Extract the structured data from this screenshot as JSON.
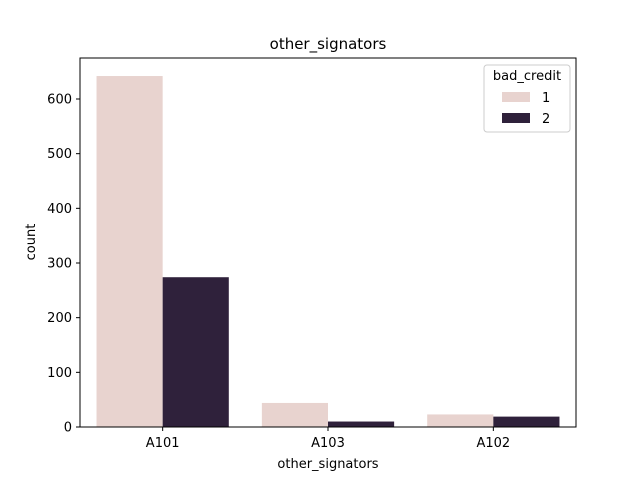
{
  "chart_data": {
    "type": "bar",
    "title": "other_signators",
    "xlabel": "other_signators",
    "ylabel": "count",
    "categories": [
      "A101",
      "A103",
      "A102"
    ],
    "series": [
      {
        "name": "1",
        "color": "#e8d3cf",
        "values": [
          642,
          44,
          23
        ]
      },
      {
        "name": "2",
        "color": "#2f213b",
        "values": [
          274,
          10,
          19
        ]
      }
    ],
    "ylim": [
      0,
      675
    ],
    "yticks": [
      0,
      100,
      200,
      300,
      400,
      500,
      600
    ],
    "legend": {
      "title": "bad_credit",
      "placement": "top-right"
    },
    "grid": false
  }
}
